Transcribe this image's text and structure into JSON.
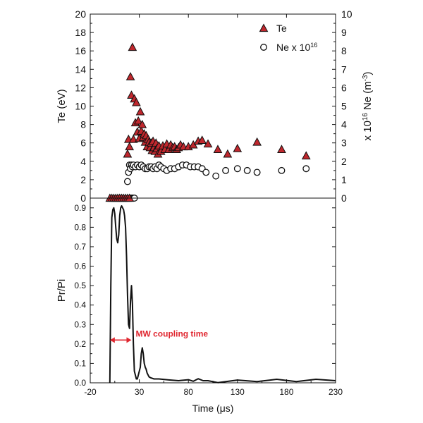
{
  "colors": {
    "te_fill": "#c0272d",
    "axis": "#111111",
    "annotation": "#e0262f",
    "trace": "#111111"
  },
  "chart_data": [
    {
      "type": "scatter",
      "xlim": [
        -20,
        230
      ],
      "ylim": [
        0,
        20
      ],
      "y2lim": [
        0,
        10
      ],
      "ylabel": "Te (eV)",
      "y2label_parts": [
        "x 10",
        "16",
        " Ne (m",
        "-3",
        ")"
      ],
      "yticks": [
        "0",
        "2",
        "4",
        "6",
        "8",
        "10",
        "12",
        "14",
        "16",
        "18",
        "20"
      ],
      "y2ticks": [
        "0",
        "1",
        "2",
        "3",
        "4",
        "5",
        "6",
        "7",
        "8",
        "9",
        "10"
      ],
      "legend_position": "top-right",
      "legend": [
        {
          "label_parts": [
            "Te"
          ],
          "marker": "triangle"
        },
        {
          "label_parts": [
            "Ne x 10",
            "16"
          ],
          "marker": "circle"
        }
      ],
      "series": [
        {
          "name": "Te",
          "marker": "triangle",
          "axis": "left",
          "points": [
            [
              0,
              0
            ],
            [
              2,
              0
            ],
            [
              4,
              0
            ],
            [
              6,
              0
            ],
            [
              8,
              0
            ],
            [
              10,
              0
            ],
            [
              12,
              0
            ],
            [
              14,
              0
            ],
            [
              16,
              0
            ],
            [
              18,
              0
            ],
            [
              20,
              0
            ],
            [
              18,
              4.8
            ],
            [
              19,
              6.4
            ],
            [
              20,
              5.6
            ],
            [
              21,
              13.2
            ],
            [
              22,
              11.2
            ],
            [
              23,
              16.4
            ],
            [
              24,
              6.4
            ],
            [
              25,
              10.8
            ],
            [
              26,
              8.2
            ],
            [
              27,
              10.4
            ],
            [
              28,
              7.2
            ],
            [
              29,
              8.4
            ],
            [
              30,
              6.5
            ],
            [
              31,
              9.4
            ],
            [
              32,
              7.3
            ],
            [
              33,
              8.0
            ],
            [
              34,
              6.6
            ],
            [
              35,
              7.0
            ],
            [
              36,
              6.1
            ],
            [
              37,
              6.8
            ],
            [
              38,
              5.6
            ],
            [
              39,
              6.4
            ],
            [
              40,
              6.1
            ],
            [
              41,
              5.5
            ],
            [
              42,
              6.0
            ],
            [
              43,
              5.2
            ],
            [
              44,
              6.2
            ],
            [
              45,
              5.5
            ],
            [
              46,
              5.1
            ],
            [
              47,
              6.0
            ],
            [
              48,
              5.4
            ],
            [
              49,
              4.8
            ],
            [
              50,
              5.7
            ],
            [
              52,
              5.1
            ],
            [
              54,
              5.7
            ],
            [
              56,
              5.3
            ],
            [
              58,
              5.9
            ],
            [
              60,
              5.3
            ],
            [
              62,
              5.8
            ],
            [
              64,
              5.5
            ],
            [
              66,
              5.6
            ],
            [
              68,
              5.3
            ],
            [
              70,
              5.5
            ],
            [
              72,
              5.8
            ],
            [
              75,
              5.6
            ],
            [
              80,
              5.6
            ],
            [
              85,
              5.8
            ],
            [
              90,
              6.2
            ],
            [
              94,
              6.3
            ],
            [
              100,
              5.9
            ],
            [
              110,
              5.3
            ],
            [
              120,
              4.8
            ],
            [
              130,
              5.4
            ],
            [
              150,
              6.1
            ],
            [
              175,
              5.3
            ],
            [
              200,
              4.6
            ]
          ]
        },
        {
          "name": "Ne x 10^16",
          "marker": "circle",
          "axis": "right",
          "points": [
            [
              21,
              0
            ],
            [
              22,
              0
            ],
            [
              23,
              0
            ],
            [
              24,
              0
            ],
            [
              25,
              0
            ],
            [
              18,
              0.9
            ],
            [
              19,
              1.4
            ],
            [
              20,
              1.8
            ],
            [
              21,
              1.6
            ],
            [
              22,
              1.8
            ],
            [
              23,
              1.7
            ],
            [
              24,
              1.8
            ],
            [
              26,
              1.7
            ],
            [
              28,
              1.8
            ],
            [
              30,
              1.7
            ],
            [
              32,
              1.8
            ],
            [
              34,
              1.7
            ],
            [
              36,
              1.6
            ],
            [
              38,
              1.6
            ],
            [
              40,
              1.7
            ],
            [
              42,
              1.7
            ],
            [
              44,
              1.6
            ],
            [
              46,
              1.7
            ],
            [
              48,
              1.6
            ],
            [
              50,
              1.8
            ],
            [
              52,
              1.7
            ],
            [
              55,
              1.6
            ],
            [
              58,
              1.5
            ],
            [
              62,
              1.6
            ],
            [
              66,
              1.6
            ],
            [
              70,
              1.7
            ],
            [
              74,
              1.8
            ],
            [
              78,
              1.8
            ],
            [
              82,
              1.7
            ],
            [
              86,
              1.7
            ],
            [
              90,
              1.7
            ],
            [
              94,
              1.6
            ],
            [
              98,
              1.4
            ],
            [
              108,
              1.2
            ],
            [
              118,
              1.5
            ],
            [
              130,
              1.6
            ],
            [
              140,
              1.5
            ],
            [
              150,
              1.4
            ],
            [
              175,
              1.5
            ],
            [
              200,
              1.6
            ]
          ]
        }
      ]
    },
    {
      "type": "line",
      "xlim": [
        -20,
        230
      ],
      "ylim": [
        0,
        0.95
      ],
      "xlabel": "Time (μs)",
      "ylabel": "Pr/Pi",
      "xticks": [
        "-20",
        "30",
        "80",
        "130",
        "180",
        "230"
      ],
      "xtick_values": [
        -20,
        30,
        80,
        130,
        180,
        230
      ],
      "yticks": [
        "0.0",
        "0.1",
        "0.2",
        "0.3",
        "0.4",
        "0.5",
        "0.6",
        "0.7",
        "0.8",
        "0.9"
      ],
      "annotation": {
        "text": "MW coupling time",
        "x_start": 0,
        "x_end": 22,
        "y": 0.22
      },
      "series": [
        {
          "name": "Pr/Pi",
          "x": [
            0,
            1,
            2,
            3,
            4,
            5,
            6,
            7,
            8,
            9,
            10,
            11,
            12,
            13,
            14,
            15,
            16,
            17,
            18,
            19,
            20,
            21,
            22,
            23,
            24,
            25,
            26,
            27,
            28,
            29,
            30,
            31,
            32,
            33,
            34,
            35,
            36,
            37,
            38,
            40,
            42,
            45,
            50,
            60,
            70,
            80,
            85,
            90,
            95,
            100,
            110,
            130,
            150,
            170,
            190,
            210,
            230
          ],
          "y": [
            0,
            0.5,
            0.85,
            0.89,
            0.9,
            0.87,
            0.8,
            0.74,
            0.72,
            0.76,
            0.86,
            0.9,
            0.91,
            0.9,
            0.89,
            0.86,
            0.8,
            0.65,
            0.45,
            0.3,
            0.28,
            0.42,
            0.5,
            0.4,
            0.2,
            0.06,
            0.04,
            0.02,
            0.02,
            0.04,
            0.06,
            0.08,
            0.15,
            0.18,
            0.15,
            0.1,
            0.08,
            0.07,
            0.05,
            0.03,
            0.025,
            0.02,
            0.02,
            0.015,
            0.015,
            0.01,
            0.012,
            0.015,
            0.015,
            0.005,
            0.005,
            0.008,
            0.01,
            0.012,
            0.01,
            0.012,
            0.015
          ]
        }
      ]
    }
  ]
}
